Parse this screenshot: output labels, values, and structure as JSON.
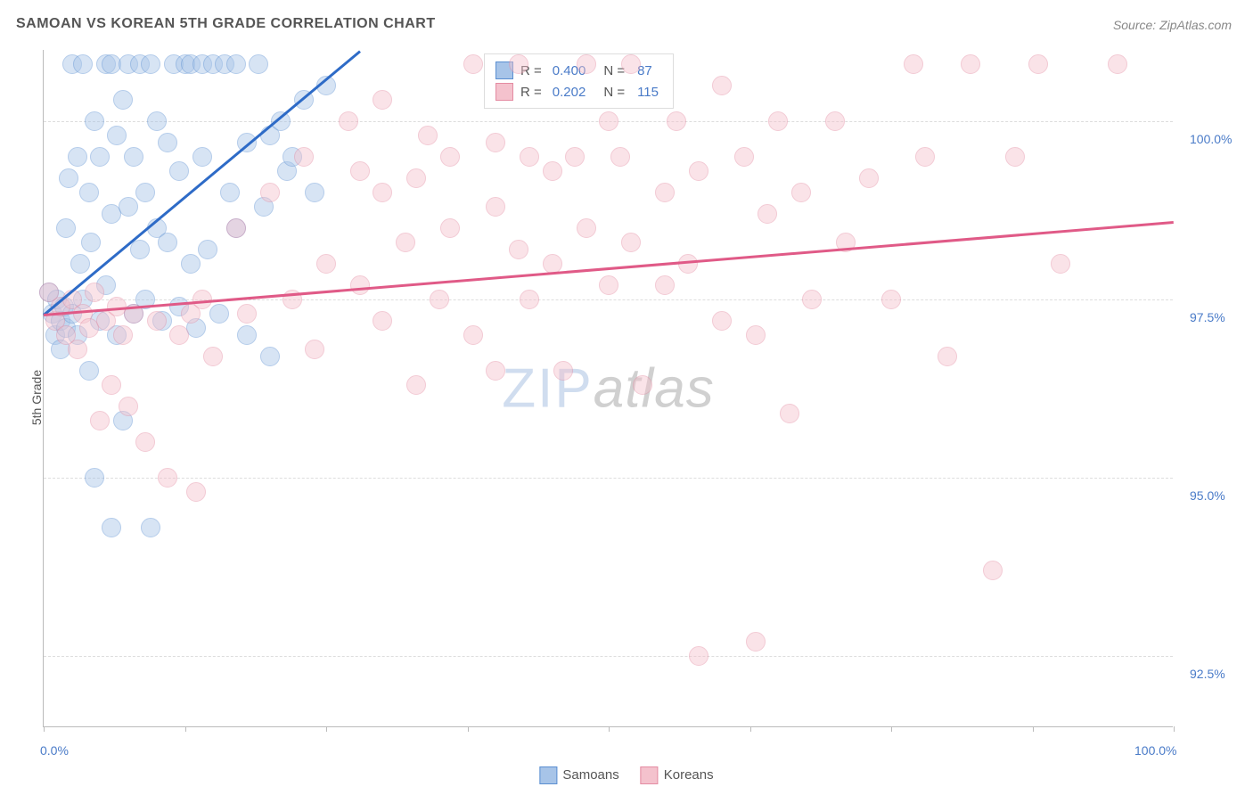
{
  "title": "SAMOAN VS KOREAN 5TH GRADE CORRELATION CHART",
  "source": "Source: ZipAtlas.com",
  "y_axis_label": "5th Grade",
  "watermark": {
    "part1": "ZIP",
    "part2": "atlas"
  },
  "chart": {
    "type": "scatter",
    "background_color": "#ffffff",
    "grid_color": "#dddddd",
    "axis_color": "#bbbbbb",
    "tick_label_color": "#4a7bc8",
    "tick_label_fontsize": 14,
    "title_fontsize": 16,
    "title_color": "#555555",
    "xlim": [
      0,
      100
    ],
    "ylim": [
      91.5,
      101.0
    ],
    "x_ticks": [
      0,
      12.5,
      25,
      37.5,
      50,
      62.5,
      75,
      87.5,
      100
    ],
    "x_tick_labels": {
      "0": "0.0%",
      "100": "100.0%"
    },
    "y_ticks": [
      92.5,
      95.0,
      97.5,
      100.0
    ],
    "y_tick_labels": [
      "92.5%",
      "95.0%",
      "97.5%",
      "100.0%"
    ],
    "marker_radius": 11,
    "marker_opacity": 0.45,
    "marker_border_opacity": 0.7,
    "series": [
      {
        "name": "Samoans",
        "color_fill": "#a7c4e8",
        "color_stroke": "#5b8fd1",
        "trend_color": "#2e6bc7",
        "R": "0.400",
        "N": "87",
        "trend_line": {
          "x1": 0,
          "y1": 97.3,
          "x2": 28,
          "y2": 101.0
        },
        "points": [
          [
            0.5,
            97.6
          ],
          [
            0.8,
            97.3
          ],
          [
            1.0,
            97.0
          ],
          [
            1.2,
            97.5
          ],
          [
            1.5,
            97.2
          ],
          [
            1.5,
            96.8
          ],
          [
            1.8,
            97.4
          ],
          [
            2.0,
            97.1
          ],
          [
            2.0,
            98.5
          ],
          [
            2.2,
            99.2
          ],
          [
            2.5,
            97.3
          ],
          [
            2.5,
            100.8
          ],
          [
            3.0,
            97.0
          ],
          [
            3.0,
            99.5
          ],
          [
            3.2,
            98.0
          ],
          [
            3.5,
            97.5
          ],
          [
            3.5,
            100.8
          ],
          [
            4.0,
            96.5
          ],
          [
            4.0,
            99.0
          ],
          [
            4.2,
            98.3
          ],
          [
            4.5,
            95.0
          ],
          [
            4.5,
            100.0
          ],
          [
            5.0,
            97.2
          ],
          [
            5.0,
            99.5
          ],
          [
            5.5,
            100.8
          ],
          [
            5.5,
            97.7
          ],
          [
            6.0,
            100.8
          ],
          [
            6.0,
            98.7
          ],
          [
            6.0,
            94.3
          ],
          [
            6.5,
            97.0
          ],
          [
            6.5,
            99.8
          ],
          [
            7.0,
            100.3
          ],
          [
            7.0,
            95.8
          ],
          [
            7.5,
            98.8
          ],
          [
            7.5,
            100.8
          ],
          [
            8.0,
            99.5
          ],
          [
            8.0,
            97.3
          ],
          [
            8.5,
            100.8
          ],
          [
            8.5,
            98.2
          ],
          [
            9.0,
            99.0
          ],
          [
            9.0,
            97.5
          ],
          [
            9.5,
            100.8
          ],
          [
            9.5,
            94.3
          ],
          [
            10.0,
            98.5
          ],
          [
            10.0,
            100.0
          ],
          [
            10.5,
            97.2
          ],
          [
            11.0,
            98.3
          ],
          [
            11.0,
            99.7
          ],
          [
            11.5,
            100.8
          ],
          [
            12.0,
            97.4
          ],
          [
            12.0,
            99.3
          ],
          [
            12.5,
            100.8
          ],
          [
            13.0,
            98.0
          ],
          [
            13.0,
            100.8
          ],
          [
            13.5,
            97.1
          ],
          [
            14.0,
            100.8
          ],
          [
            14.0,
            99.5
          ],
          [
            14.5,
            98.2
          ],
          [
            15.0,
            100.8
          ],
          [
            15.5,
            97.3
          ],
          [
            16.0,
            100.8
          ],
          [
            16.5,
            99.0
          ],
          [
            17.0,
            98.5
          ],
          [
            17.0,
            100.8
          ],
          [
            18.0,
            99.7
          ],
          [
            18.0,
            97.0
          ],
          [
            19.0,
            100.8
          ],
          [
            19.5,
            98.8
          ],
          [
            20.0,
            99.8
          ],
          [
            20.0,
            96.7
          ],
          [
            21.0,
            100.0
          ],
          [
            21.5,
            99.3
          ],
          [
            22.0,
            99.5
          ],
          [
            23.0,
            100.3
          ],
          [
            24.0,
            99.0
          ],
          [
            25.0,
            100.5
          ]
        ]
      },
      {
        "name": "Koreans",
        "color_fill": "#f4c2cd",
        "color_stroke": "#e48ba2",
        "trend_color": "#e05a87",
        "R": "0.202",
        "N": "115",
        "trend_line": {
          "x1": 0,
          "y1": 97.3,
          "x2": 100,
          "y2": 98.6
        },
        "points": [
          [
            0.5,
            97.6
          ],
          [
            1.0,
            97.2
          ],
          [
            1.5,
            97.4
          ],
          [
            2.0,
            97.0
          ],
          [
            2.5,
            97.5
          ],
          [
            3.0,
            96.8
          ],
          [
            3.5,
            97.3
          ],
          [
            4.0,
            97.1
          ],
          [
            4.5,
            97.6
          ],
          [
            5.0,
            95.8
          ],
          [
            5.5,
            97.2
          ],
          [
            6.0,
            96.3
          ],
          [
            6.5,
            97.4
          ],
          [
            7.0,
            97.0
          ],
          [
            7.5,
            96.0
          ],
          [
            8.0,
            97.3
          ],
          [
            9.0,
            95.5
          ],
          [
            10.0,
            97.2
          ],
          [
            11.0,
            95.0
          ],
          [
            12.0,
            97.0
          ],
          [
            13.0,
            97.3
          ],
          [
            13.5,
            94.8
          ],
          [
            14.0,
            97.5
          ],
          [
            15.0,
            96.7
          ],
          [
            17.0,
            98.5
          ],
          [
            18.0,
            97.3
          ],
          [
            20.0,
            99.0
          ],
          [
            22.0,
            97.5
          ],
          [
            23.0,
            99.5
          ],
          [
            24.0,
            96.8
          ],
          [
            25.0,
            98.0
          ],
          [
            27.0,
            100.0
          ],
          [
            28.0,
            97.7
          ],
          [
            28.0,
            99.3
          ],
          [
            30.0,
            97.2
          ],
          [
            30.0,
            99.0
          ],
          [
            30.0,
            100.3
          ],
          [
            32.0,
            98.3
          ],
          [
            33.0,
            96.3
          ],
          [
            33.0,
            99.2
          ],
          [
            34.0,
            99.8
          ],
          [
            35.0,
            97.5
          ],
          [
            36.0,
            98.5
          ],
          [
            36.0,
            99.5
          ],
          [
            38.0,
            97.0
          ],
          [
            38.0,
            100.8
          ],
          [
            40.0,
            96.5
          ],
          [
            40.0,
            98.8
          ],
          [
            40.0,
            99.7
          ],
          [
            42.0,
            98.2
          ],
          [
            42.0,
            100.8
          ],
          [
            43.0,
            97.5
          ],
          [
            43.0,
            99.5
          ],
          [
            45.0,
            98.0
          ],
          [
            45.0,
            99.3
          ],
          [
            46.0,
            96.5
          ],
          [
            47.0,
            99.5
          ],
          [
            48.0,
            98.5
          ],
          [
            48.0,
            100.8
          ],
          [
            50.0,
            97.7
          ],
          [
            50.0,
            100.0
          ],
          [
            51.0,
            99.5
          ],
          [
            52.0,
            98.3
          ],
          [
            52.0,
            100.8
          ],
          [
            53.0,
            96.3
          ],
          [
            55.0,
            99.0
          ],
          [
            55.0,
            97.7
          ],
          [
            56.0,
            100.0
          ],
          [
            57.0,
            98.0
          ],
          [
            58.0,
            99.3
          ],
          [
            58.0,
            92.5
          ],
          [
            60.0,
            97.2
          ],
          [
            60.0,
            100.5
          ],
          [
            62.0,
            99.5
          ],
          [
            63.0,
            97.0
          ],
          [
            63.0,
            92.7
          ],
          [
            64.0,
            98.7
          ],
          [
            65.0,
            100.0
          ],
          [
            66.0,
            95.9
          ],
          [
            67.0,
            99.0
          ],
          [
            68.0,
            97.5
          ],
          [
            70.0,
            100.0
          ],
          [
            71.0,
            98.3
          ],
          [
            73.0,
            99.2
          ],
          [
            75.0,
            97.5
          ],
          [
            77.0,
            100.8
          ],
          [
            78.0,
            99.5
          ],
          [
            80.0,
            96.7
          ],
          [
            82.0,
            100.8
          ],
          [
            84.0,
            93.7
          ],
          [
            86.0,
            99.5
          ],
          [
            88.0,
            100.8
          ],
          [
            90.0,
            98.0
          ],
          [
            95.0,
            100.8
          ]
        ]
      }
    ]
  },
  "legend": {
    "r_label": "R =",
    "n_label": "N ="
  },
  "bottom_legend": [
    "Samoans",
    "Koreans"
  ]
}
